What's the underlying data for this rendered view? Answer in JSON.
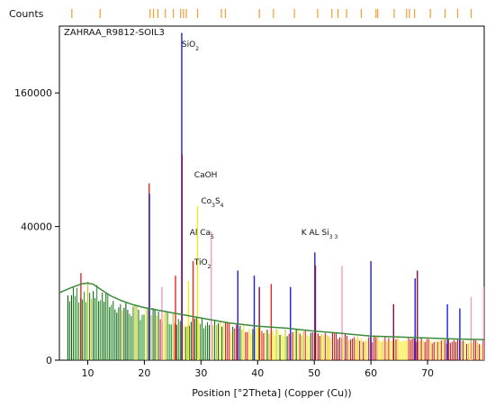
{
  "chart_data": {
    "type": "bar",
    "title": "ZAHRAA_R9812-SOIL3",
    "ylabel": "Counts",
    "xlabel": "Position [°2Theta] (Copper (Cu))",
    "xlim": [
      5,
      80
    ],
    "ylim_sqrt": [
      0,
      250000
    ],
    "x_ticks": [
      10,
      20,
      30,
      40,
      50,
      60,
      70
    ],
    "y_ticks": [
      0,
      40000,
      160000
    ],
    "y_tick_labels": [
      "0",
      "40000",
      "160000"
    ],
    "background_curve": {
      "color": "#3d8a3d",
      "x": [
        5,
        7,
        9,
        10,
        11,
        12,
        14,
        16,
        18,
        20,
        25,
        30,
        35,
        40,
        45,
        50,
        55,
        60,
        65,
        70,
        75,
        80
      ],
      "y": [
        10200,
        11700,
        13100,
        13300,
        12900,
        11600,
        9300,
        7900,
        6900,
        6200,
        5000,
        4000,
        3100,
        2600,
        2300,
        1900,
        1600,
        1300,
        1200,
        1100,
        1000,
        950
      ]
    },
    "peaks": [
      {
        "x": 26.6,
        "y": 240000,
        "color": "#1d1dd8",
        "phase": "SiO2"
      },
      {
        "x": 26.65,
        "y": 95000,
        "color": "#8b0a4e"
      },
      {
        "x": 20.85,
        "y": 70000,
        "color": "#e6261f"
      },
      {
        "x": 20.9,
        "y": 62000,
        "color": "#1d1dd8"
      },
      {
        "x": 29.4,
        "y": 53000,
        "color": "#f5ea14",
        "phase": "CaOH"
      },
      {
        "x": 31.8,
        "y": 37000,
        "color": "#f09cc9",
        "phase": "Co3S4"
      },
      {
        "x": 28.6,
        "y": 22000,
        "color": "#e6261f",
        "phase": "Al5Ca"
      },
      {
        "x": 27.8,
        "y": 14000,
        "color": "#f5ea14",
        "phase": "TiO2"
      },
      {
        "x": 50.1,
        "y": 26000,
        "color": "#1d1dd8",
        "phase": "K AL3Si3"
      },
      {
        "x": 50.2,
        "y": 20000,
        "color": "#8b0a4e"
      },
      {
        "x": 36.5,
        "y": 18000,
        "color": "#1d1dd8"
      },
      {
        "x": 39.4,
        "y": 16000,
        "color": "#1d1dd8"
      },
      {
        "x": 40.3,
        "y": 12000,
        "color": "#8b0a4e"
      },
      {
        "x": 42.4,
        "y": 13000,
        "color": "#e6261f"
      },
      {
        "x": 45.8,
        "y": 12000,
        "color": "#1d1dd8"
      },
      {
        "x": 54.9,
        "y": 20000,
        "color": "#f09cc9"
      },
      {
        "x": 60.0,
        "y": 22000,
        "color": "#1d1dd8"
      },
      {
        "x": 64.0,
        "y": 7000,
        "color": "#8b0a4e"
      },
      {
        "x": 67.8,
        "y": 15000,
        "color": "#1d1dd8"
      },
      {
        "x": 68.2,
        "y": 18000,
        "color": "#8b0a4e"
      },
      {
        "x": 73.5,
        "y": 7000,
        "color": "#1d1dd8"
      },
      {
        "x": 75.7,
        "y": 6000,
        "color": "#1d1dd8"
      },
      {
        "x": 77.7,
        "y": 9000,
        "color": "#f09cc9"
      },
      {
        "x": 79.9,
        "y": 12000,
        "color": "#f09cc9"
      },
      {
        "x": 8.8,
        "y": 17000,
        "color": "#e6261f"
      },
      {
        "x": 23.1,
        "y": 12000,
        "color": "#f09cc9"
      },
      {
        "x": 25.5,
        "y": 16000,
        "color": "#e6261f"
      }
    ],
    "reference_ticks": {
      "color": "#f39c30",
      "x": [
        7.2,
        12.2,
        21.0,
        21.6,
        22.4,
        23.7,
        25.1,
        26.4,
        26.9,
        27.4,
        29.4,
        33.6,
        34.3,
        40.3,
        42.8,
        46.5,
        50.6,
        53.1,
        54.2,
        55.7,
        58.3,
        60.9,
        61.2,
        64.1,
        66.3,
        66.8,
        67.7,
        70.5,
        73.1,
        75.3,
        77.7
      ]
    },
    "annotations": [
      {
        "x": 26.6,
        "y": 220000,
        "main": "SiO",
        "sub": "2",
        "sub2": ""
      },
      {
        "x": 28.8,
        "y": 75000,
        "main": "CaOH",
        "sub": "",
        "sub2": ""
      },
      {
        "x": 30.0,
        "y": 55000,
        "main": "Co",
        "sub": "3",
        "after": "S",
        "sub2": "4"
      },
      {
        "x": 28.0,
        "y": 35000,
        "main": "Al Ca",
        "sub": "5",
        "sub2": ""
      },
      {
        "x": 28.8,
        "y": 20500,
        "main": "TiO",
        "sub": "2",
        "sub2": ""
      },
      {
        "x": 47.7,
        "y": 35000,
        "main": "K AL Si",
        "sub": "3 3",
        "sub2": ""
      }
    ]
  },
  "colors": {
    "background": "#ffffff",
    "frame": "#000000",
    "ref_tick": "#f39c30"
  }
}
